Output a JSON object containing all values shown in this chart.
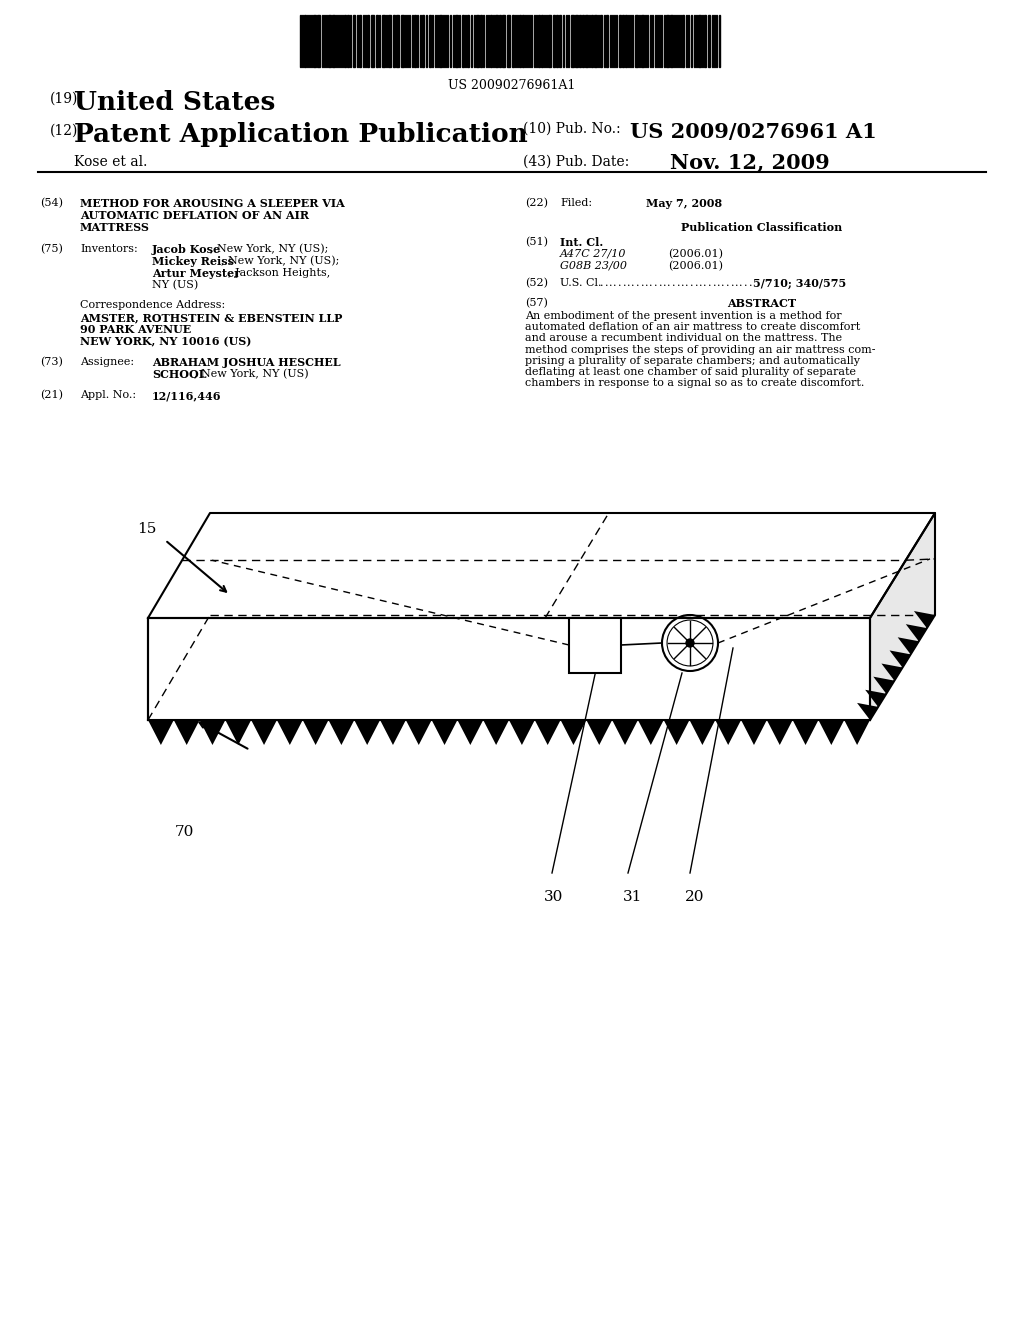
{
  "background_color": "#ffffff",
  "barcode_text": "US 20090276961A1",
  "header": {
    "country_num": "(19)",
    "country": "United States",
    "pub_type_num": "(12)",
    "pub_type": "Patent Application Publication",
    "pub_no_num": "(10)",
    "pub_no_label": "Pub. No.:",
    "pub_no": "US 2009/0276961 A1",
    "inventors_line": "Kose et al.",
    "pub_date_num": "(43)",
    "pub_date_label": "Pub. Date:",
    "pub_date": "Nov. 12, 2009"
  },
  "abstract_lines": [
    "An embodiment of the present invention is a method for",
    "automated deflation of an air mattress to create discomfort",
    "and arouse a recumbent individual on the mattress. The",
    "method comprises the steps of providing an air mattress com-",
    "prising a plurality of separate chambers; and automatically",
    "deflating at least one chamber of said plurality of separate",
    "chambers in response to a signal so as to create discomfort."
  ]
}
